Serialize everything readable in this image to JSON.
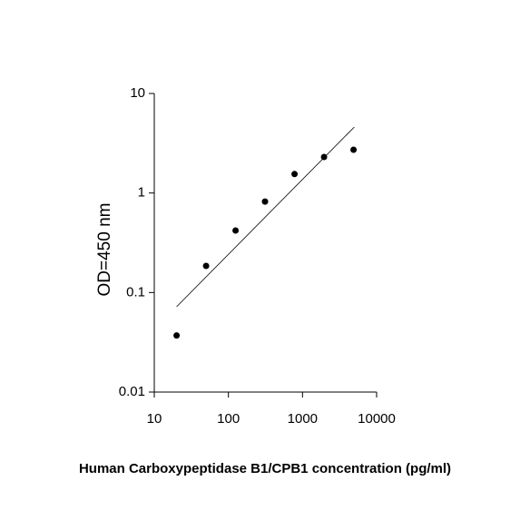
{
  "chart_data": {
    "type": "scatter",
    "xlabel": "Human Carboxypeptidase B1/CPB1 concentration (pg/ml)",
    "ylabel": "OD=450 nm",
    "x_log": true,
    "y_log": true,
    "xlim": [
      10,
      10000
    ],
    "xticks": [
      10,
      100,
      1000,
      10000
    ],
    "ylim": [
      0.01,
      10
    ],
    "yticks": [
      0.01,
      0.1,
      1,
      10
    ],
    "color": "#000000",
    "points": {
      "x": [
        20,
        50,
        125,
        312,
        781,
        1953,
        4883
      ],
      "y": [
        0.037,
        0.185,
        0.42,
        0.82,
        1.55,
        2.3,
        2.72
      ]
    },
    "fit_line": {
      "x": [
        20,
        5000
      ],
      "y": [
        0.072,
        4.6
      ]
    }
  }
}
